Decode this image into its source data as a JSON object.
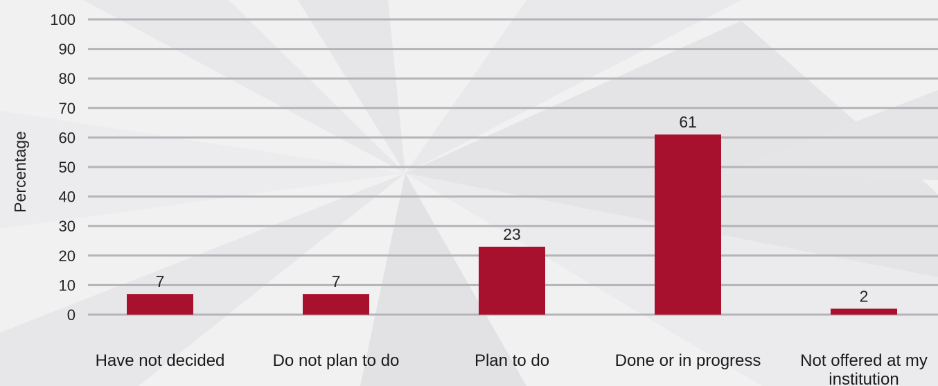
{
  "chart_data": {
    "type": "bar",
    "categories": [
      "Have not decided",
      "Do not plan to do",
      "Plan to do",
      "Done or in progress",
      "Not offered at my institution"
    ],
    "values": [
      7,
      7,
      23,
      61,
      2
    ],
    "data_labels": [
      "7",
      "7",
      "23",
      "61",
      "2"
    ],
    "title": "",
    "xlabel": "",
    "ylabel": "Percentage",
    "ylim": [
      0,
      100
    ],
    "yticks": [
      "0",
      "10",
      "20",
      "30",
      "40",
      "50",
      "60",
      "70",
      "80",
      "90",
      "100"
    ],
    "grid": true,
    "legend": "none",
    "bar_color": "#a8112e",
    "grid_color": "#b4b4b9"
  }
}
